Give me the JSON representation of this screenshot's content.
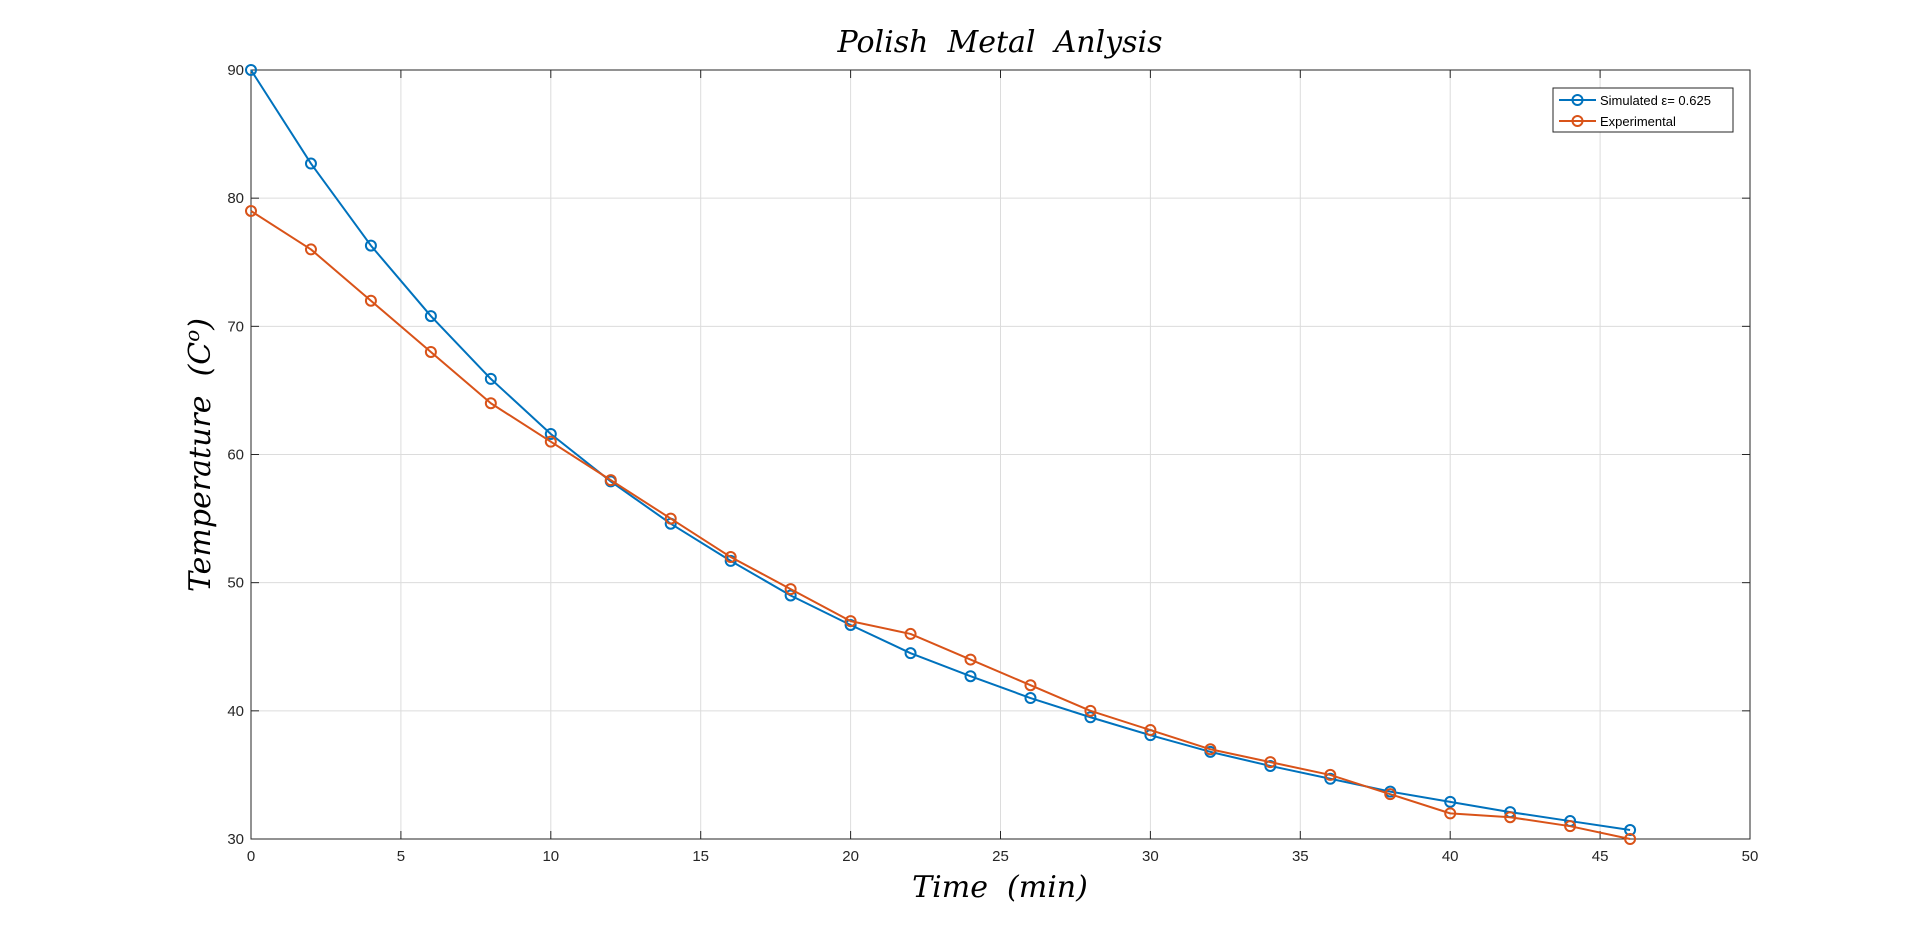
{
  "colors": {
    "simulated": "#0072BD",
    "experimental": "#D95319",
    "grid": "#dcdcdc",
    "axes": "#262626"
  },
  "chart_data": {
    "type": "line",
    "title": "Polish  Metal  Anlysis",
    "xlabel": "Time  (min)",
    "ylabel": "Temperature  (C",
    "ylabel_superscript": "o",
    "ylabel_close": ")",
    "xlim": [
      0,
      50
    ],
    "ylim": [
      30,
      90
    ],
    "xticks": [
      0,
      5,
      10,
      15,
      20,
      25,
      30,
      35,
      40,
      45,
      50
    ],
    "yticks": [
      30,
      40,
      50,
      60,
      70,
      80,
      90
    ],
    "grid": true,
    "legend_position": "top-right",
    "marker": "circle",
    "series": [
      {
        "name": "Simulated ε= 0.625",
        "color": "#0072BD",
        "x": [
          0,
          2,
          4,
          6,
          8,
          10,
          12,
          14,
          16,
          18,
          20,
          22,
          24,
          26,
          28,
          30,
          32,
          34,
          36,
          38,
          40,
          42,
          44,
          46
        ],
        "y": [
          90,
          82.7,
          76.3,
          70.8,
          65.9,
          61.6,
          57.9,
          54.6,
          51.7,
          49.0,
          46.7,
          44.5,
          42.7,
          41.0,
          39.5,
          38.1,
          36.8,
          35.7,
          34.7,
          33.7,
          32.9,
          32.1,
          31.4,
          30.7
        ]
      },
      {
        "name": "Experimental",
        "color": "#D95319",
        "x": [
          0,
          2,
          4,
          6,
          8,
          10,
          12,
          14,
          16,
          18,
          20,
          22,
          24,
          26,
          28,
          30,
          32,
          34,
          36,
          38,
          40,
          42,
          44,
          46
        ],
        "y": [
          79,
          76,
          72,
          68,
          64,
          61,
          58,
          55,
          52,
          49.5,
          47,
          46,
          44,
          42,
          40,
          38.5,
          37,
          36,
          35,
          33.5,
          32,
          31.7,
          31,
          30
        ]
      }
    ]
  }
}
